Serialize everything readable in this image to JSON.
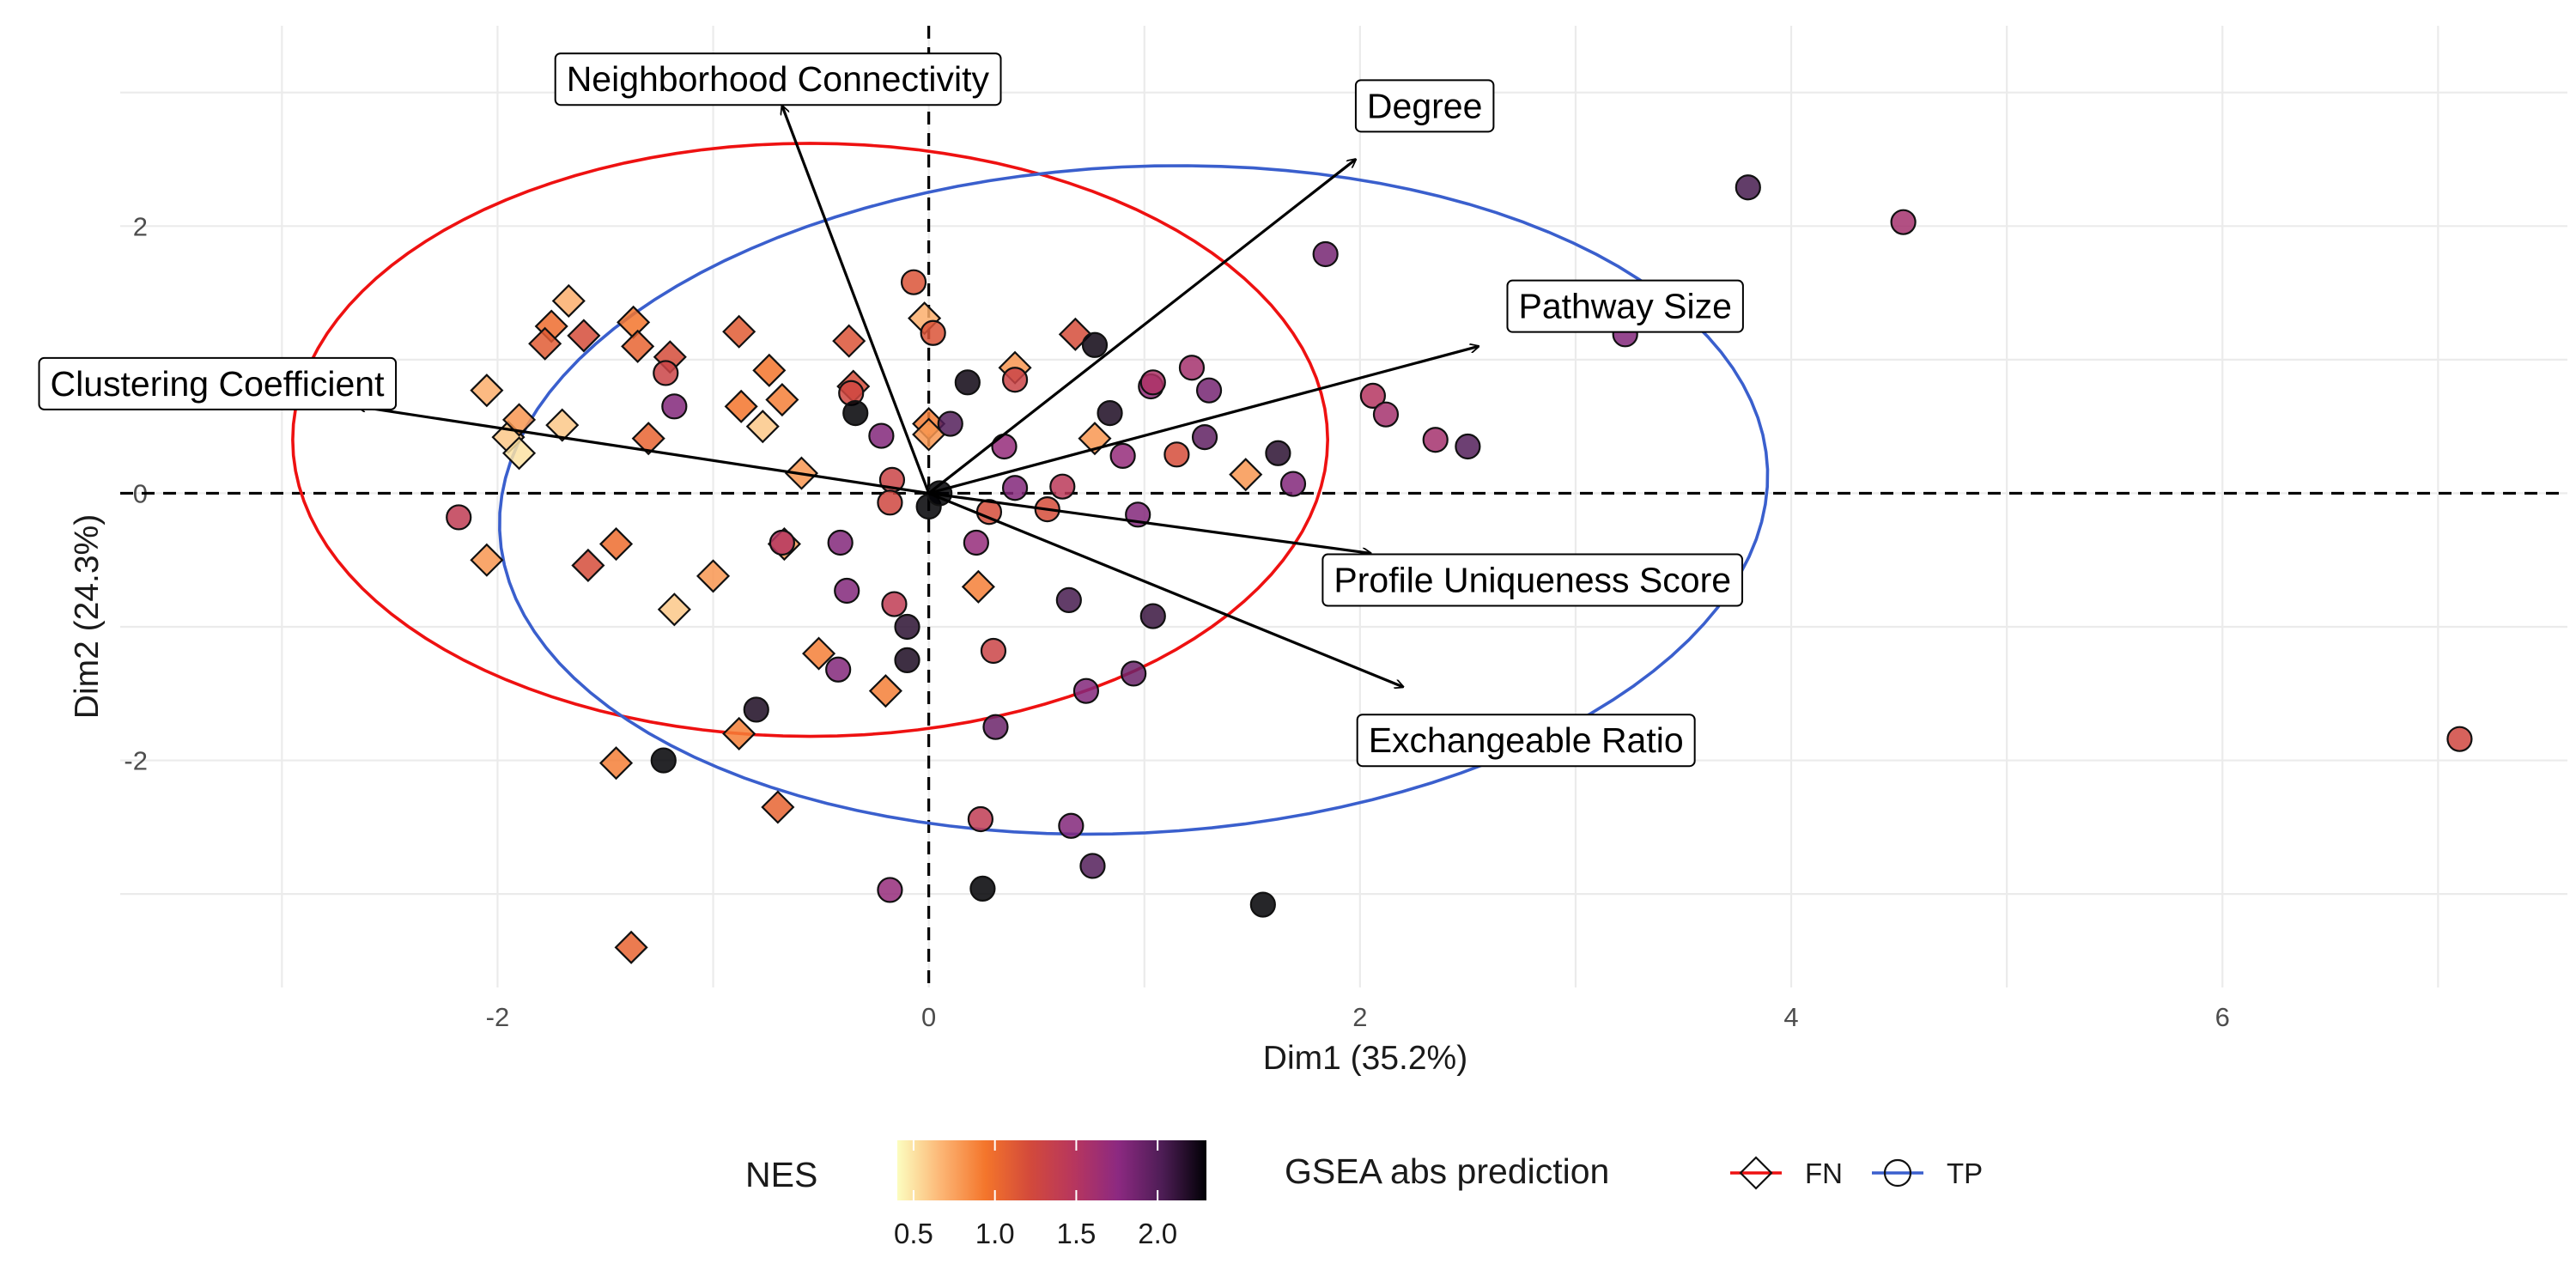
{
  "chart_data": {
    "type": "scatter",
    "xlabel": "Dim1 (35.2%)",
    "ylabel": "Dim2 (24.3%)",
    "xlim": [
      -3.75,
      7.6
    ],
    "ylim": [
      -3.7,
      3.5
    ],
    "x_ticks": [
      -2,
      0,
      2,
      4,
      6
    ],
    "y_ticks": [
      -2,
      0,
      2
    ],
    "grid": true,
    "reference_lines": {
      "x": 0,
      "y": 0
    },
    "legend_position": "bottom",
    "color_legend": {
      "title": "NES",
      "range": [
        0.4,
        2.3
      ],
      "ticks": [
        0.5,
        1.0,
        1.5,
        2.0
      ],
      "tick_labels": [
        "0.5",
        "1.0",
        "1.5",
        "2.0"
      ],
      "colors": [
        "#fcfdbf",
        "#fcb574",
        "#f4752b",
        "#d34a3b",
        "#b7365e",
        "#8c2981",
        "#4d1d55",
        "#000004"
      ]
    },
    "shape_legend": {
      "title": "GSEA abs prediction",
      "items": [
        {
          "label": "FN",
          "shape": "diamond",
          "ellipse_color": "#ee1111"
        },
        {
          "label": "TP",
          "shape": "circle",
          "ellipse_color": "#3a5fcd"
        }
      ]
    },
    "ellipses": [
      {
        "group": "FN",
        "color": "#ee1111",
        "center": [
          -0.55,
          0.4
        ],
        "semi_axes": [
          2.4,
          2.22
        ],
        "angle_deg": 0
      },
      {
        "group": "TP",
        "color": "#3a5fcd",
        "center": [
          0.95,
          -0.05
        ],
        "semi_axes": [
          2.96,
          2.48
        ],
        "angle_deg": 12
      }
    ],
    "variables": [
      {
        "name": "Neighborhood Connectivity",
        "x": -0.68,
        "y": 2.9,
        "label_x": -0.7,
        "label_y": 3.1
      },
      {
        "name": "Degree",
        "x": 1.98,
        "y": 2.5,
        "label_x": 2.3,
        "label_y": 2.9
      },
      {
        "name": "Pathway Size",
        "x": 2.55,
        "y": 1.1,
        "label_x": 3.23,
        "label_y": 1.4
      },
      {
        "name": "Clustering Coefficient",
        "x": -2.65,
        "y": 0.65,
        "label_x": -3.3,
        "label_y": 0.82
      },
      {
        "name": "Profile Uniqueness Score",
        "x": 2.05,
        "y": -0.45,
        "label_x": 2.8,
        "label_y": -0.65
      },
      {
        "name": "Exchangeable Ratio",
        "x": 2.2,
        "y": -1.45,
        "label_x": 2.77,
        "label_y": -1.85
      }
    ],
    "series": [
      {
        "name": "FN",
        "shape": "diamond",
        "points": [
          [
            -1.67,
            1.44,
            0.7
          ],
          [
            -1.37,
            1.28,
            0.95
          ],
          [
            -1.35,
            1.1,
            1.05
          ],
          [
            -1.75,
            1.25,
            1.0
          ],
          [
            -1.78,
            1.12,
            1.1
          ],
          [
            -1.6,
            1.18,
            1.2
          ],
          [
            -1.2,
            1.02,
            1.2
          ],
          [
            -0.88,
            1.21,
            1.1
          ],
          [
            -0.74,
            0.92,
            0.95
          ],
          [
            -0.68,
            0.7,
            0.9
          ],
          [
            -0.87,
            0.65,
            0.95
          ],
          [
            -0.77,
            0.5,
            0.6
          ],
          [
            -0.59,
            0.15,
            0.8
          ],
          [
            -0.37,
            1.14,
            1.15
          ],
          [
            -0.35,
            0.8,
            1.2
          ],
          [
            -2.05,
            0.77,
            0.7
          ],
          [
            -1.95,
            0.42,
            0.6
          ],
          [
            -1.9,
            0.3,
            0.5
          ],
          [
            -1.9,
            0.55,
            0.8
          ],
          [
            -1.7,
            0.51,
            0.6
          ],
          [
            -1.3,
            0.41,
            1.05
          ],
          [
            -2.05,
            -0.5,
            0.8
          ],
          [
            -1.45,
            -0.38,
            1.0
          ],
          [
            -1.58,
            -0.54,
            1.2
          ],
          [
            -1.0,
            -0.62,
            0.8
          ],
          [
            -1.18,
            -0.87,
            0.6
          ],
          [
            -0.67,
            -0.38,
            0.8
          ],
          [
            -0.51,
            -1.2,
            0.9
          ],
          [
            -0.2,
            -1.48,
            0.9
          ],
          [
            -0.88,
            -1.8,
            0.9
          ],
          [
            -1.45,
            -2.02,
            0.9
          ],
          [
            -0.7,
            -2.35,
            1.05
          ],
          [
            -1.38,
            -3.4,
            1.05
          ],
          [
            -0.02,
            1.31,
            0.7
          ],
          [
            0.0,
            0.52,
            0.9
          ],
          [
            0.0,
            0.44,
            0.8
          ],
          [
            0.4,
            0.94,
            0.8
          ],
          [
            0.68,
            1.19,
            1.2
          ],
          [
            0.77,
            0.41,
            0.8
          ],
          [
            0.23,
            -0.7,
            0.9
          ],
          [
            1.47,
            0.14,
            0.8
          ]
        ]
      },
      {
        "name": "TP",
        "shape": "circle",
        "points": [
          [
            -0.07,
            1.58,
            1.15
          ],
          [
            0.02,
            1.2,
            1.15
          ],
          [
            0.18,
            0.83,
            2.25
          ],
          [
            0.77,
            1.11,
            2.25
          ],
          [
            -0.36,
            0.75,
            1.25
          ],
          [
            -0.34,
            0.6,
            2.3
          ],
          [
            0.1,
            0.52,
            2.0
          ],
          [
            -1.18,
            0.65,
            1.8
          ],
          [
            -1.22,
            0.9,
            1.3
          ],
          [
            -0.22,
            0.43,
            1.8
          ],
          [
            0.35,
            0.35,
            1.7
          ],
          [
            0.4,
            0.85,
            1.3
          ],
          [
            -0.17,
            0.1,
            1.3
          ],
          [
            -0.18,
            -0.07,
            1.25
          ],
          [
            0.0,
            -0.1,
            2.4
          ],
          [
            0.05,
            0.0,
            2.4
          ],
          [
            0.4,
            0.04,
            1.8
          ],
          [
            0.62,
            0.05,
            1.45
          ],
          [
            0.55,
            -0.12,
            1.2
          ],
          [
            0.28,
            -0.14,
            1.2
          ],
          [
            0.84,
            0.6,
            2.2
          ],
          [
            0.9,
            0.28,
            1.7
          ],
          [
            1.03,
            0.8,
            1.7
          ],
          [
            1.04,
            0.83,
            1.55
          ],
          [
            1.3,
            0.77,
            1.85
          ],
          [
            1.22,
            0.94,
            1.6
          ],
          [
            1.15,
            0.29,
            1.2
          ],
          [
            1.28,
            0.42,
            1.95
          ],
          [
            1.62,
            0.3,
            2.15
          ],
          [
            1.69,
            0.07,
            1.8
          ],
          [
            0.97,
            -0.16,
            1.8
          ],
          [
            1.84,
            1.79,
            1.85
          ],
          [
            2.06,
            0.73,
            1.5
          ],
          [
            2.12,
            0.59,
            1.6
          ],
          [
            2.35,
            0.4,
            1.6
          ],
          [
            2.5,
            0.35,
            2.0
          ],
          [
            3.23,
            1.19,
            1.8
          ],
          [
            3.8,
            2.29,
            2.05
          ],
          [
            4.52,
            2.03,
            1.6
          ],
          [
            7.1,
            -1.84,
            1.25
          ],
          [
            -2.18,
            -0.18,
            1.4
          ],
          [
            -0.68,
            -0.37,
            1.5
          ],
          [
            -0.41,
            -0.37,
            1.8
          ],
          [
            0.22,
            -0.37,
            1.7
          ],
          [
            -0.38,
            -0.73,
            1.8
          ],
          [
            -0.16,
            -0.83,
            1.4
          ],
          [
            -0.1,
            -1.0,
            2.15
          ],
          [
            -0.1,
            -1.25,
            2.2
          ],
          [
            -0.42,
            -1.32,
            1.8
          ],
          [
            0.3,
            -1.18,
            1.3
          ],
          [
            0.65,
            -0.8,
            2.05
          ],
          [
            1.04,
            -0.92,
            2.1
          ],
          [
            0.95,
            -1.35,
            1.9
          ],
          [
            0.73,
            -1.48,
            1.8
          ],
          [
            0.31,
            -1.75,
            1.9
          ],
          [
            -0.8,
            -1.62,
            2.2
          ],
          [
            -1.23,
            -2.0,
            2.35
          ],
          [
            0.24,
            -2.44,
            1.4
          ],
          [
            0.66,
            -2.49,
            1.8
          ],
          [
            0.76,
            -2.79,
            2.0
          ],
          [
            -0.18,
            -2.97,
            1.7
          ],
          [
            0.25,
            -2.96,
            2.4
          ],
          [
            1.55,
            -3.08,
            2.35
          ]
        ]
      }
    ],
    "point_encoding": [
      "Dim1",
      "Dim2",
      "NES"
    ]
  }
}
